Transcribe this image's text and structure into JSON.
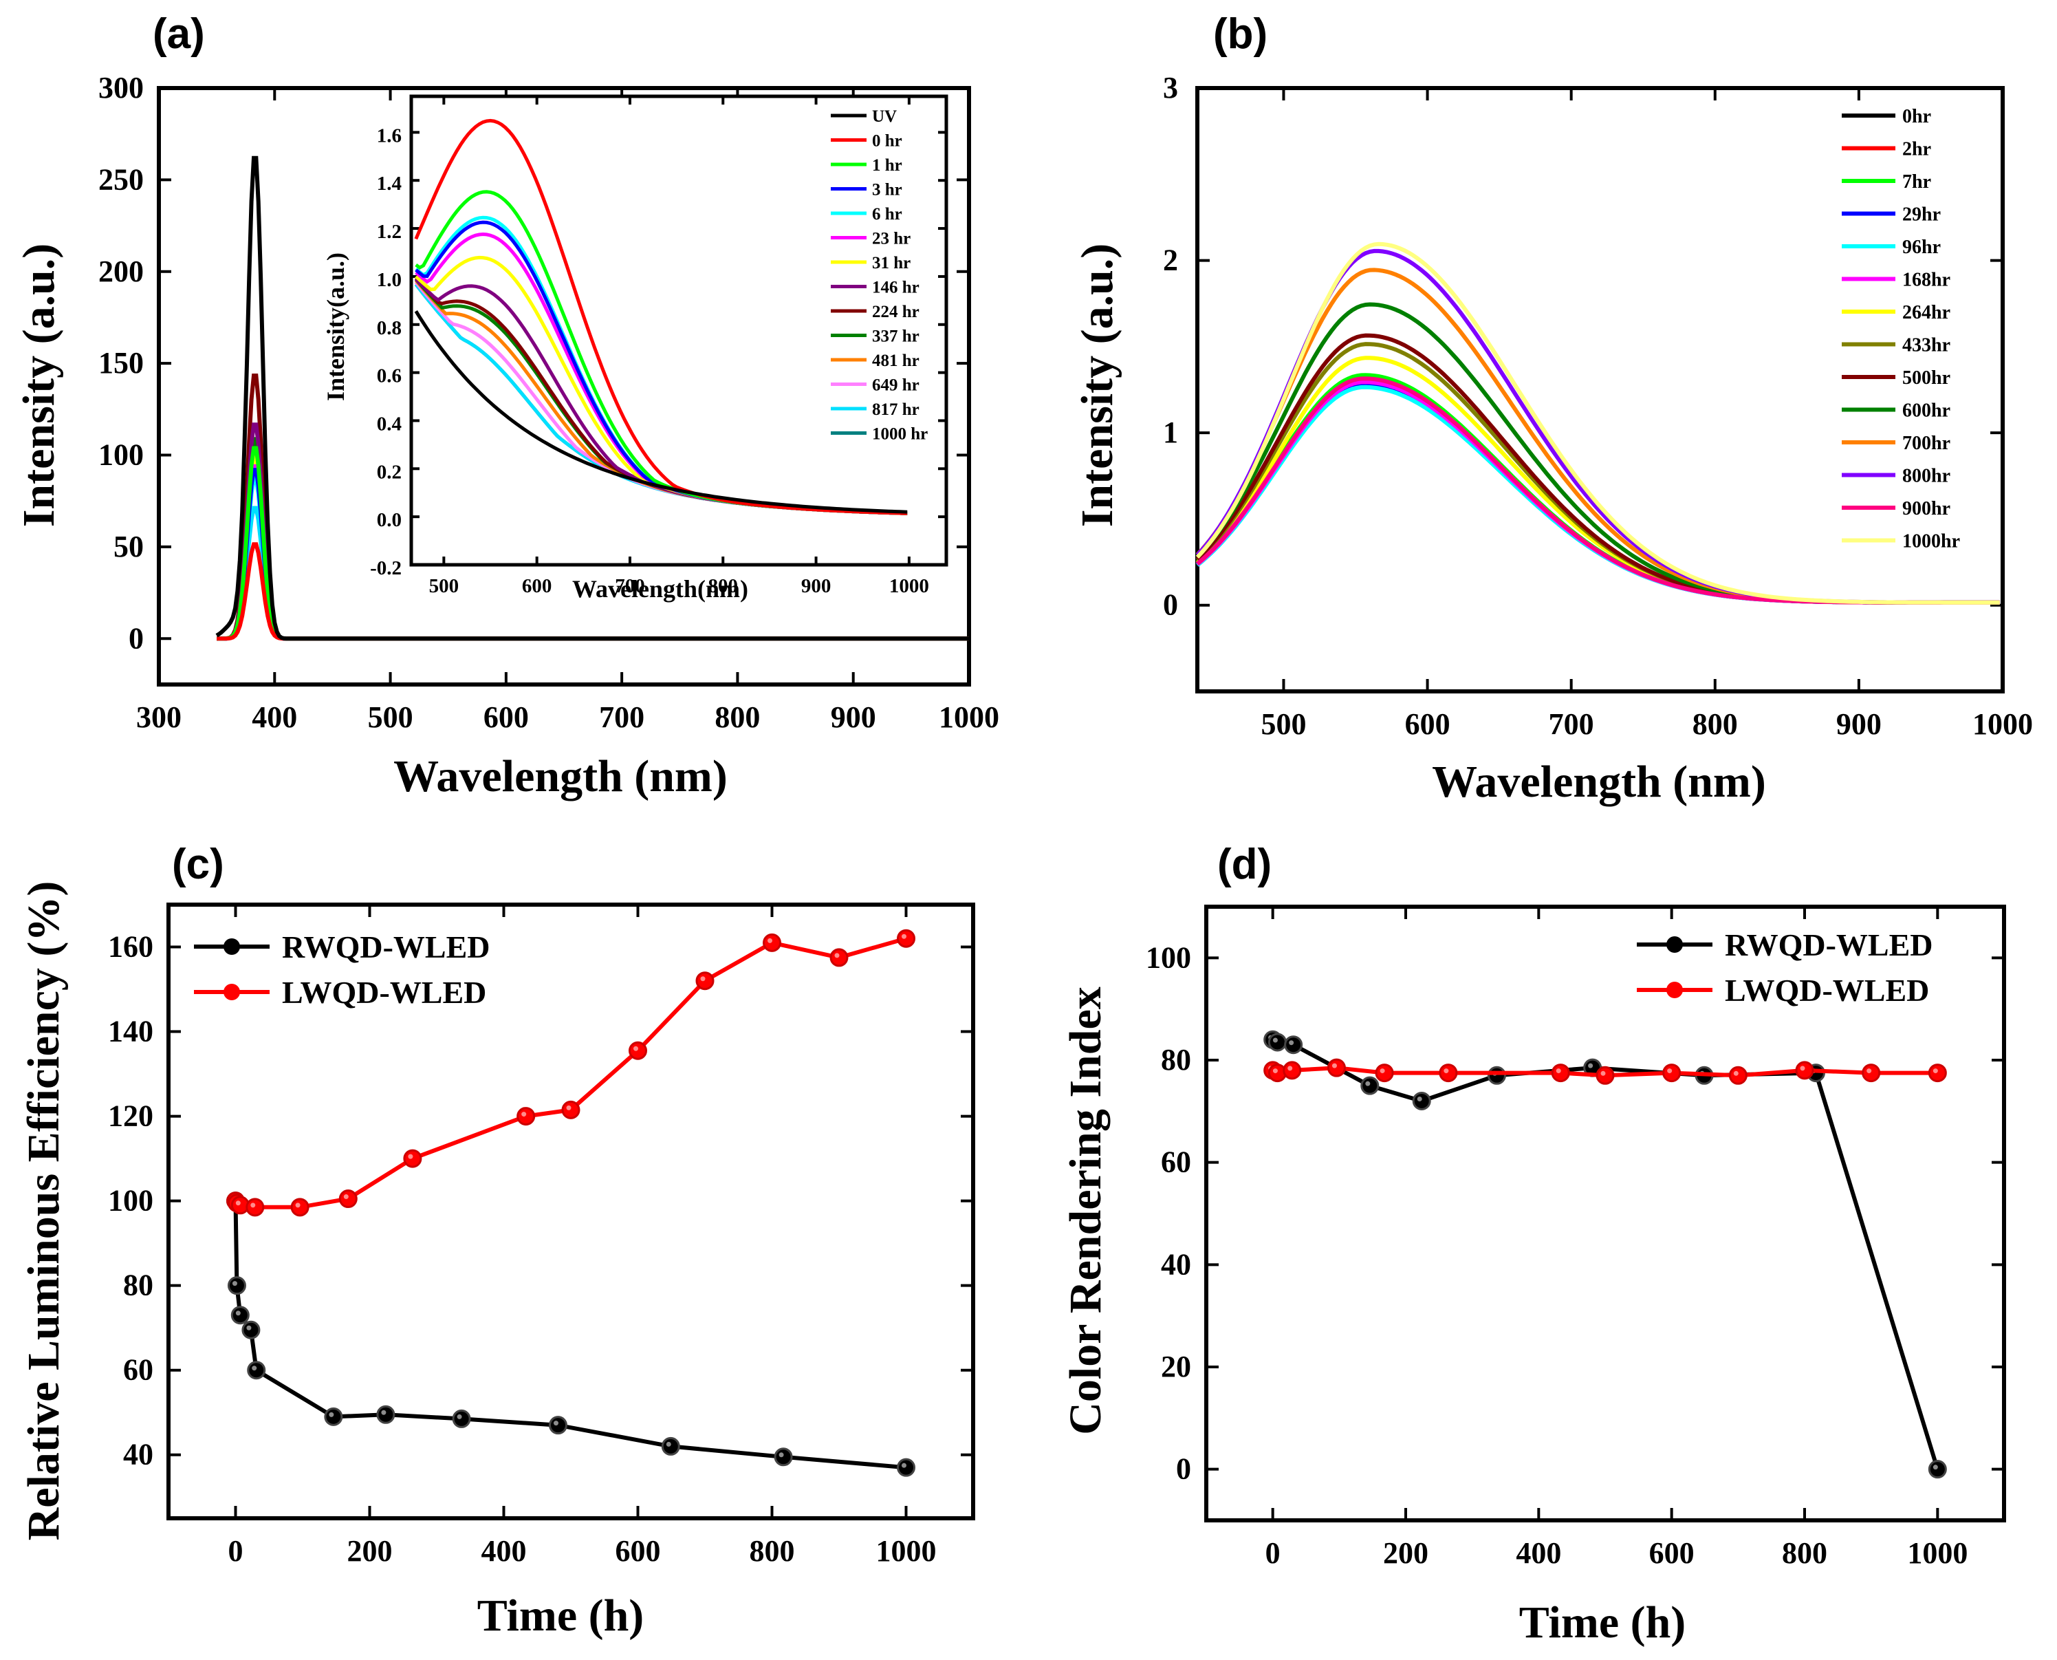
{
  "figure": {
    "panels": [
      "(a)",
      "(b)",
      "(c)",
      "(d)"
    ]
  },
  "chart_data": [
    {
      "id": "a",
      "panel_label": "(a)",
      "type": "line",
      "title": "",
      "xlabel": "Wavelength (nm)",
      "ylabel": "Intensity (a.u.)",
      "xlim": [
        300,
        1000
      ],
      "ylim": [
        -25,
        300
      ],
      "xticks": [
        300,
        400,
        500,
        600,
        700,
        800,
        900,
        1000
      ],
      "yticks": [
        0,
        50,
        100,
        150,
        200,
        250,
        300
      ],
      "peak_position_nm": 383,
      "peak_width_nm": 6.5,
      "series": [
        {
          "name": "UV",
          "color": "#000000",
          "peak": 265
        },
        {
          "name": "0 hr",
          "color": "#ff0000",
          "peak": 52
        },
        {
          "name": "1 hr",
          "color": "#00ff00",
          "peak": 105
        },
        {
          "name": "3 hr",
          "color": "#0000ff",
          "peak": 93
        },
        {
          "name": "6 hr",
          "color": "#00ffff",
          "peak": 88
        },
        {
          "name": "23 hr",
          "color": "#ff00ff",
          "peak": 95
        },
        {
          "name": "31 hr",
          "color": "#ffff00",
          "peak": 100
        },
        {
          "name": "146 hr",
          "color": "#800080",
          "peak": 118
        },
        {
          "name": "224 hr",
          "color": "#800000",
          "peak": 145
        },
        {
          "name": "337 hr",
          "color": "#008000",
          "peak": 110
        },
        {
          "name": "481 hr",
          "color": "#ff8000",
          "peak": 100
        },
        {
          "name": "649 hr",
          "color": "#ff80ff",
          "peak": 90
        },
        {
          "name": "817 hr",
          "color": "#00e0ff",
          "peak": 72
        },
        {
          "name": "1000 hr",
          "color": "#008080",
          "peak": 98
        }
      ],
      "inset": {
        "type": "line",
        "xlabel": "Wavelength(nm)",
        "ylabel": "Intensity(a.u.)",
        "xlim": [
          465,
          1040
        ],
        "ylim": [
          -0.2,
          1.75
        ],
        "xticks": [
          500,
          600,
          700,
          800,
          900,
          1000
        ],
        "yticks": [
          -0.2,
          0.0,
          0.2,
          0.4,
          0.6,
          0.8,
          1.0,
          1.2,
          1.4,
          1.6
        ],
        "x_range": [
          470,
          1000
        ],
        "series": [
          {
            "name": "UV",
            "color": "#000000",
            "start": 0.8,
            "shoulder": 0.0,
            "shoulder_center": 540,
            "bump": 0.0,
            "center": 560,
            "width": 80
          },
          {
            "name": "0 hr",
            "color": "#ff0000",
            "start": 0.8,
            "shoulder": 0.0,
            "shoulder_center": 540,
            "bump": 1.5,
            "center": 555,
            "width": 82
          },
          {
            "name": "1 hr",
            "color": "#00ff00",
            "start": 0.8,
            "shoulder": 0.0,
            "shoulder_center": 540,
            "bump": 1.2,
            "center": 552,
            "width": 80
          },
          {
            "name": "3 hr",
            "color": "#0000ff",
            "start": 0.8,
            "shoulder": 0.0,
            "shoulder_center": 540,
            "bump": 1.07,
            "center": 550,
            "width": 80
          },
          {
            "name": "6 hr",
            "color": "#00ffff",
            "start": 0.8,
            "shoulder": 0.0,
            "shoulder_center": 540,
            "bump": 1.09,
            "center": 550,
            "width": 80
          },
          {
            "name": "23 hr",
            "color": "#ff00ff",
            "start": 0.8,
            "shoulder": 0.0,
            "shoulder_center": 540,
            "bump": 1.02,
            "center": 550,
            "width": 80
          },
          {
            "name": "31 hr",
            "color": "#ffff00",
            "start": 0.8,
            "shoulder": 0.0,
            "shoulder_center": 540,
            "bump": 0.92,
            "center": 548,
            "width": 80
          },
          {
            "name": "146 hr",
            "color": "#800080",
            "start": 0.8,
            "shoulder": 0.0,
            "shoulder_center": 540,
            "bump": 0.79,
            "center": 540,
            "width": 80
          },
          {
            "name": "224 hr",
            "color": "#800000",
            "start": 0.8,
            "shoulder": 0.0,
            "shoulder_center": 540,
            "bump": 0.71,
            "center": 530,
            "width": 85
          },
          {
            "name": "337 hr",
            "color": "#008000",
            "start": 0.8,
            "shoulder": 0.0,
            "shoulder_center": 540,
            "bump": 0.69,
            "center": 530,
            "width": 85
          },
          {
            "name": "481 hr",
            "color": "#ff8000",
            "start": 0.8,
            "shoulder": 0.0,
            "shoulder_center": 540,
            "bump": 0.65,
            "center": 525,
            "width": 85
          },
          {
            "name": "649 hr",
            "color": "#ff80ff",
            "start": 0.8,
            "shoulder": 0.0,
            "shoulder_center": 540,
            "bump": 0.6,
            "center": 520,
            "width": 85
          },
          {
            "name": "817 hr",
            "color": "#00e0ff",
            "start": 0.8,
            "shoulder": 0.0,
            "shoulder_center": 540,
            "bump": 0.55,
            "center": 515,
            "width": 85
          },
          {
            "name": "1000 hr",
            "color": "#008080",
            "start": 0.8,
            "shoulder": 0.0,
            "shoulder_center": 540,
            "bump": 0.55,
            "center": 515,
            "width": 85
          }
        ]
      }
    },
    {
      "id": "b",
      "panel_label": "(b)",
      "type": "line",
      "title": "",
      "xlabel": "Wavelength (nm)",
      "ylabel": "Intensity (a.u.)",
      "xlim": [
        440,
        1000
      ],
      "ylim": [
        -0.5,
        3
      ],
      "xticks": [
        500,
        600,
        700,
        800,
        900,
        1000
      ],
      "yticks": [
        0,
        1,
        2,
        3
      ],
      "x_range": [
        440,
        1000
      ],
      "series": [
        {
          "name": "0hr",
          "color": "#000000",
          "peak": 1.27,
          "center": 556
        },
        {
          "name": "2hr",
          "color": "#ff0000",
          "peak": 1.3,
          "center": 556
        },
        {
          "name": "7hr",
          "color": "#00ff00",
          "peak": 1.32,
          "center": 556
        },
        {
          "name": "29hr",
          "color": "#0000ff",
          "peak": 1.26,
          "center": 556
        },
        {
          "name": "96hr",
          "color": "#00ffff",
          "peak": 1.25,
          "center": 556
        },
        {
          "name": "168hr",
          "color": "#ff00ff",
          "peak": 1.28,
          "center": 556
        },
        {
          "name": "264hr",
          "color": "#ffff00",
          "peak": 1.42,
          "center": 558
        },
        {
          "name": "433hr",
          "color": "#808000",
          "peak": 1.5,
          "center": 558
        },
        {
          "name": "500hr",
          "color": "#800000",
          "peak": 1.55,
          "center": 558
        },
        {
          "name": "600hr",
          "color": "#008000",
          "peak": 1.73,
          "center": 560
        },
        {
          "name": "700hr",
          "color": "#ff8000",
          "peak": 1.93,
          "center": 562
        },
        {
          "name": "800hr",
          "color": "#8000ff",
          "peak": 2.04,
          "center": 564
        },
        {
          "name": "900hr",
          "color": "#ff0080",
          "peak": 1.3,
          "center": 556
        },
        {
          "name": "1000hr",
          "color": "#ffff80",
          "peak": 2.08,
          "center": 566
        }
      ]
    },
    {
      "id": "c",
      "panel_label": "(c)",
      "type": "line",
      "title": "",
      "xlabel": "Time (h)",
      "ylabel": "Relative Luminous Efficiency (%)",
      "xlim": [
        -100,
        1100
      ],
      "ylim": [
        25,
        170
      ],
      "xticks": [
        0,
        200,
        400,
        600,
        800,
        1000
      ],
      "yticks": [
        40,
        60,
        80,
        100,
        120,
        140,
        160
      ],
      "series": [
        {
          "name": "RWQD-WLED",
          "color": "#000000",
          "x": [
            0,
            2,
            7,
            23,
            31,
            146,
            224,
            337,
            481,
            649,
            817,
            1000
          ],
          "y": [
            100,
            80,
            73,
            69.5,
            60,
            49,
            49.5,
            48.5,
            47,
            42,
            39.5,
            37
          ]
        },
        {
          "name": "LWQD-WLED",
          "color": "#ff0000",
          "x": [
            0,
            2,
            7,
            29,
            96,
            168,
            264,
            433,
            500,
            600,
            700,
            800,
            900,
            1000
          ],
          "y": [
            100,
            99.5,
            99,
            98.5,
            98.5,
            100.5,
            110,
            120,
            121.5,
            135.5,
            152,
            161,
            157.5,
            162
          ]
        }
      ]
    },
    {
      "id": "d",
      "panel_label": "(d)",
      "type": "line",
      "title": "",
      "xlabel": "Time (h)",
      "ylabel": "Color Rendering Index",
      "xlim": [
        -100,
        1100
      ],
      "ylim": [
        -10,
        110
      ],
      "xticks": [
        0,
        200,
        400,
        600,
        800,
        1000
      ],
      "yticks": [
        0,
        20,
        40,
        60,
        80,
        100
      ],
      "series": [
        {
          "name": "RWQD-WLED",
          "color": "#000000",
          "x": [
            0,
            7,
            31,
            146,
            224,
            337,
            481,
            649,
            817,
            1000
          ],
          "y": [
            84,
            83.5,
            83,
            75,
            72,
            77,
            78.5,
            77,
            77.5,
            0
          ]
        },
        {
          "name": "LWQD-WLED",
          "color": "#ff0000",
          "x": [
            0,
            7,
            29,
            96,
            168,
            264,
            433,
            500,
            600,
            700,
            800,
            900,
            1000
          ],
          "y": [
            78,
            77.5,
            78,
            78.5,
            77.5,
            77.5,
            77.5,
            77,
            77.5,
            77,
            78,
            77.5,
            77.5
          ]
        }
      ]
    }
  ]
}
